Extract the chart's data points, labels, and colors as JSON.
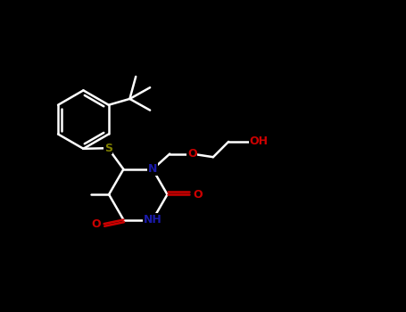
{
  "background_color": "#000000",
  "bond_color": "#ffffff",
  "atom_colors": {
    "N": "#1a1aaa",
    "O": "#cc0000",
    "S": "#808000",
    "C": "#ffffff"
  },
  "lw": 1.8,
  "fontsize": 9
}
